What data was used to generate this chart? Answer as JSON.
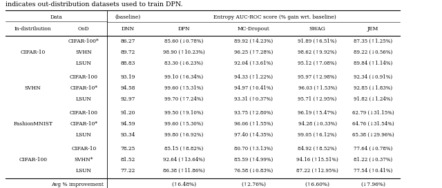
{
  "title_above": "indicates out-distribution datasets used to train DPN.",
  "col_headers_row2": [
    "In-distribution",
    "OoD",
    "DNN",
    "DPN",
    "MC-Dropout",
    "SWAG",
    "JEM"
  ],
  "groups": [
    {
      "in_dist": "CIFAR-10",
      "rows": [
        [
          "CIFAR-100*",
          "86.27",
          "85.60 (↓0.78%)",
          "89.92 (↑4.23%)",
          "91.89 (↑6.51%)",
          "87.35 (↑1.25%)"
        ],
        [
          "SVHN",
          "89.72",
          "98.90 (↑10.23%)",
          "96.25 (↑7.28%)",
          "98.62 (↑9.92%)",
          "89.22 (↓0.56%)"
        ],
        [
          "LSUN",
          "88.83",
          "83.30 (↓6.23%)",
          "92.04 (↑3.61%)",
          "95.12 (↑7.08%)",
          "89.84 (↑1.14%)"
        ]
      ]
    },
    {
      "in_dist": "SVHN",
      "rows": [
        [
          "CIFAR-100",
          "93.19",
          "99.10 (↑6.34%)",
          "94.33 (↑1.22%)",
          "95.97 (↑2.98%)",
          "92.34 (↓0.91%)"
        ],
        [
          "CIFAR-10*",
          "94.58",
          "99.60 (↑5.31%)",
          "94.97 (↑0.41%)",
          "96.03 (↑1.53%)",
          "92.85 (↓1.83%)"
        ],
        [
          "LSUN",
          "92.97",
          "99.70 (↑7.24%)",
          "93.31 (↑0.37%)",
          "95.71 (↑2.95%)",
          "91.82 (↓1.24%)"
        ]
      ]
    },
    {
      "in_dist": "FashionMNIST",
      "rows": [
        [
          "CIFAR-100",
          "91.20",
          "99.50 (↑9.10%)",
          "93.75 (↑2.80%)",
          "96.19 (↑5.47%)",
          "62.79 (↓31.15%)"
        ],
        [
          "CIFAR-10*",
          "94.59",
          "99.60 (↑5.30%)",
          "96.06 (↑1.55%)",
          "94.28 (↓0.33%)",
          "64.76 (↓31.54%)"
        ],
        [
          "LSUN",
          "93.34",
          "99.80 (↑6.92%)",
          "97.40 (↑4.35%)",
          "99.05 (↑6.12%)",
          "65.38 (↓29.96%)"
        ]
      ]
    },
    {
      "in_dist": "CIFAR-100",
      "rows": [
        [
          "CIFAR-10",
          "78.25",
          "85.15 (↑8.82%)",
          "80.70 (↑3.13%)",
          "84.92 (↑8.52%)",
          "77.64 (↓0.78%)"
        ],
        [
          "SVHN*",
          "81.52",
          "92.64 (↑13.64%)",
          "85.59 (↑4.99%)",
          "94.16 (↑15.51%)",
          "81.22 (↓0.37%)"
        ],
        [
          "LSUN",
          "77.22",
          "86.38 (↑11.86%)",
          "76.58 (↓0.83%)",
          "87.22 (↑12.95%)",
          "77.54 (↑0.41%)"
        ]
      ]
    }
  ],
  "avg_row": [
    "Avg % improvement",
    "",
    "(↑6.48%)",
    "(↑2.76%)",
    "(↑6.60%)",
    "(↓7.96%)"
  ],
  "figsize": [
    6.4,
    2.73
  ],
  "dpi": 100
}
